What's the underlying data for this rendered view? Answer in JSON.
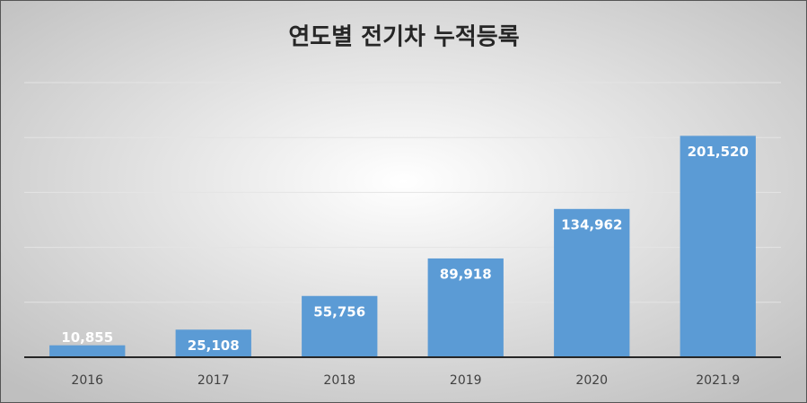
{
  "chart_data": {
    "type": "bar",
    "title": "연도별 전기차 누적등록",
    "categories": [
      "2016",
      "2017",
      "2018",
      "2019",
      "2020",
      "2021.9"
    ],
    "values": [
      10855,
      25108,
      55756,
      89918,
      134962,
      201520
    ],
    "value_labels": [
      "10,855",
      "25,108",
      "55,756",
      "89,918",
      "134,962",
      "201,520"
    ],
    "color": "#5b9bd5",
    "ylim": [
      0,
      250000
    ],
    "yticks": [
      0,
      50000,
      100000,
      150000,
      200000,
      250000
    ],
    "grid": true
  }
}
